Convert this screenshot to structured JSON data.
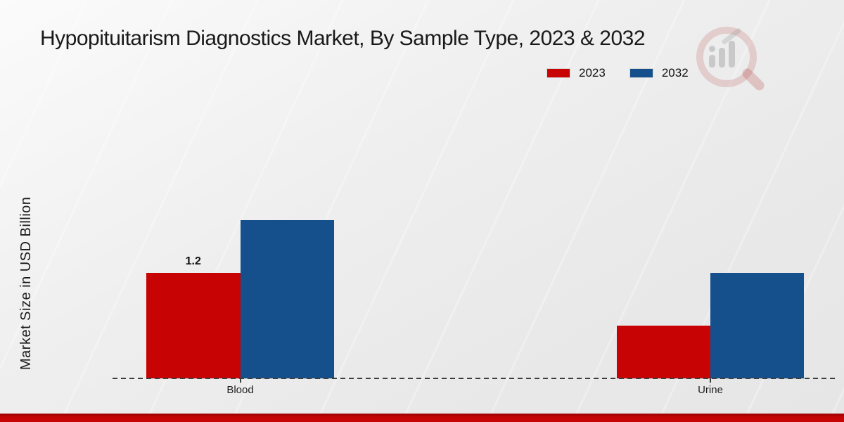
{
  "page": {
    "title": "Hypopituitarism Diagnostics Market, By Sample Type, 2023 & 2032",
    "ylabel": "Market Size in USD Billion"
  },
  "legend": {
    "items": [
      {
        "label": "2023",
        "color": "#c70304"
      },
      {
        "label": "2032",
        "color": "#15508d"
      }
    ]
  },
  "chart_data": {
    "type": "bar",
    "title": "Hypopituitarism Diagnostics Market, By Sample Type, 2023 & 2032",
    "xlabel": "",
    "ylabel": "Market Size in USD Billion",
    "categories": [
      "Blood",
      "Urine"
    ],
    "series": [
      {
        "name": "2023",
        "color": "#c70304",
        "values": [
          1.2,
          0.6
        ],
        "data_labels": [
          "1.2",
          ""
        ]
      },
      {
        "name": "2032",
        "color": "#15508d",
        "values": [
          1.8,
          1.2
        ],
        "data_labels": [
          "",
          ""
        ]
      }
    ],
    "ylim": [
      0,
      2.2
    ],
    "grid": false,
    "legend_position": "top-right",
    "baseline_style": "dashed",
    "value_label_shown": "1.2 on Blood 2023 bar"
  },
  "icons": {
    "watermark": "magnifier-bar-chart-icon"
  },
  "colors": {
    "series_2023": "#c70304",
    "series_2032": "#15508d",
    "axis_line": "#3d3d3d",
    "footer_band": "#c50404",
    "text": "#1a1a1a"
  }
}
